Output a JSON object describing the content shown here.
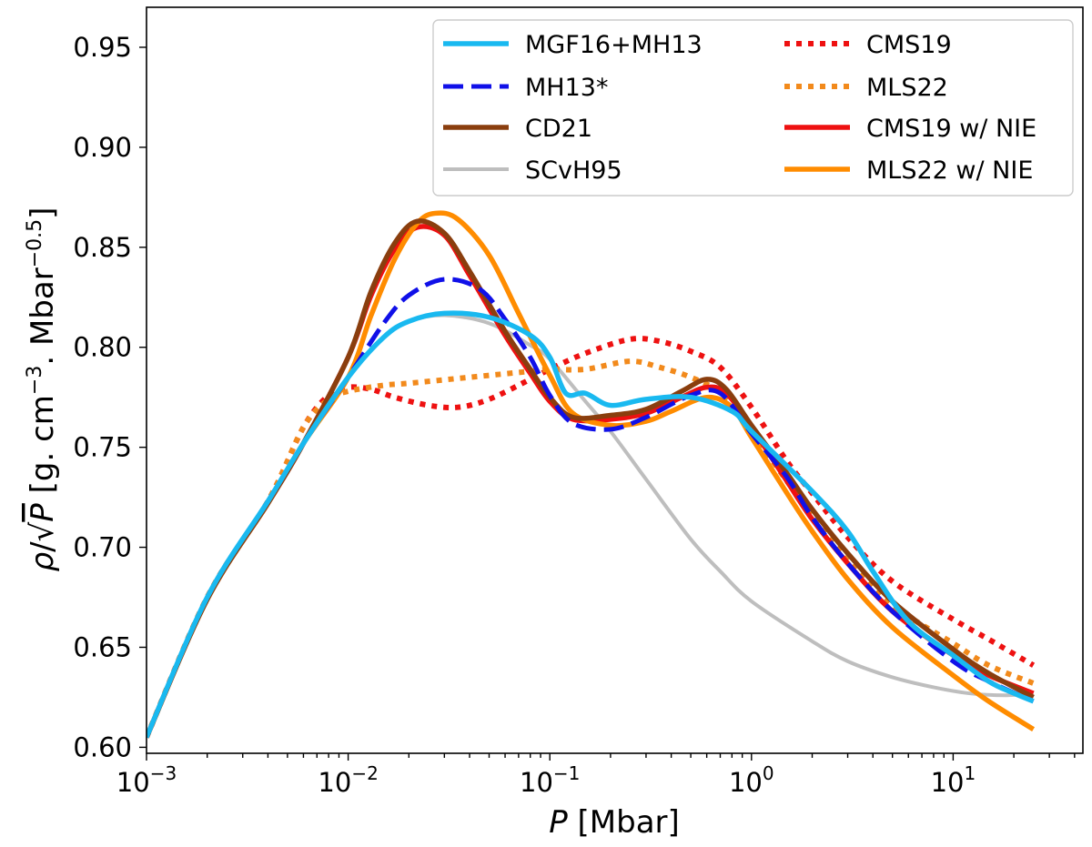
{
  "chart_data": {
    "type": "line",
    "title": "",
    "xlabel": "P [Mbar]",
    "ylabel": "ρ/√P [g. cm⁻³. Mbar⁻⁰·⁵]",
    "xscale": "log",
    "xlim": [
      0.001,
      44
    ],
    "ylim": [
      0.597,
      0.97
    ],
    "x_ticks": [
      {
        "value": 0.001,
        "base": "10",
        "exp": "−3"
      },
      {
        "value": 0.01,
        "base": "10",
        "exp": "−2"
      },
      {
        "value": 0.1,
        "base": "10",
        "exp": "−1"
      },
      {
        "value": 1,
        "base": "10",
        "exp": "0"
      },
      {
        "value": 10,
        "base": "10",
        "exp": "1"
      }
    ],
    "y_ticks": [
      {
        "value": 0.6,
        "label": "0.60"
      },
      {
        "value": 0.65,
        "label": "0.65"
      },
      {
        "value": 0.7,
        "label": "0.70"
      },
      {
        "value": 0.75,
        "label": "0.75"
      },
      {
        "value": 0.8,
        "label": "0.80"
      },
      {
        "value": 0.85,
        "label": "0.85"
      },
      {
        "value": 0.9,
        "label": "0.90"
      },
      {
        "value": 0.95,
        "label": "0.95"
      }
    ],
    "legend_position": "top-right",
    "series": [
      {
        "name": "MGF16+MH13",
        "color": "#19b9f0",
        "style": "solid",
        "width": 5.5,
        "points": [
          [
            0.001,
            0.605
          ],
          [
            0.002,
            0.675
          ],
          [
            0.004,
            0.723
          ],
          [
            0.006,
            0.752
          ],
          [
            0.01,
            0.785
          ],
          [
            0.015,
            0.805
          ],
          [
            0.02,
            0.813
          ],
          [
            0.03,
            0.817
          ],
          [
            0.05,
            0.815
          ],
          [
            0.08,
            0.806
          ],
          [
            0.1,
            0.795
          ],
          [
            0.12,
            0.777
          ],
          [
            0.15,
            0.777
          ],
          [
            0.2,
            0.771
          ],
          [
            0.3,
            0.774
          ],
          [
            0.5,
            0.775
          ],
          [
            0.8,
            0.768
          ],
          [
            1,
            0.758
          ],
          [
            2,
            0.728
          ],
          [
            3,
            0.708
          ],
          [
            4,
            0.688
          ],
          [
            6,
            0.663
          ],
          [
            10,
            0.646
          ],
          [
            15,
            0.633
          ],
          [
            20,
            0.627
          ],
          [
            25,
            0.623
          ]
        ]
      },
      {
        "name": "MH13*",
        "color": "#1010e8",
        "style": "dashed",
        "width": 5,
        "points": [
          [
            0.001,
            0.605
          ],
          [
            0.002,
            0.675
          ],
          [
            0.004,
            0.723
          ],
          [
            0.006,
            0.752
          ],
          [
            0.01,
            0.785
          ],
          [
            0.015,
            0.812
          ],
          [
            0.02,
            0.826
          ],
          [
            0.03,
            0.834
          ],
          [
            0.045,
            0.829
          ],
          [
            0.06,
            0.814
          ],
          [
            0.08,
            0.795
          ],
          [
            0.1,
            0.776
          ],
          [
            0.13,
            0.762
          ],
          [
            0.2,
            0.759
          ],
          [
            0.3,
            0.765
          ],
          [
            0.5,
            0.776
          ],
          [
            0.7,
            0.777
          ],
          [
            1,
            0.757
          ],
          [
            1.5,
            0.735
          ],
          [
            2,
            0.715
          ],
          [
            3,
            0.692
          ],
          [
            5,
            0.668
          ],
          [
            10,
            0.643
          ],
          [
            15,
            0.633
          ],
          [
            25,
            0.623
          ]
        ]
      },
      {
        "name": "CD21",
        "color": "#8a3e0e",
        "style": "solid",
        "width": 5.5,
        "points": [
          [
            0.001,
            0.605
          ],
          [
            0.002,
            0.674
          ],
          [
            0.004,
            0.722
          ],
          [
            0.006,
            0.752
          ],
          [
            0.01,
            0.795
          ],
          [
            0.013,
            0.828
          ],
          [
            0.017,
            0.852
          ],
          [
            0.022,
            0.863
          ],
          [
            0.03,
            0.857
          ],
          [
            0.04,
            0.838
          ],
          [
            0.06,
            0.808
          ],
          [
            0.08,
            0.789
          ],
          [
            0.1,
            0.775
          ],
          [
            0.13,
            0.765
          ],
          [
            0.2,
            0.766
          ],
          [
            0.3,
            0.769
          ],
          [
            0.45,
            0.778
          ],
          [
            0.6,
            0.784
          ],
          [
            0.75,
            0.779
          ],
          [
            1,
            0.761
          ],
          [
            1.5,
            0.737
          ],
          [
            2,
            0.719
          ],
          [
            3,
            0.697
          ],
          [
            5,
            0.673
          ],
          [
            10,
            0.649
          ],
          [
            15,
            0.637
          ],
          [
            25,
            0.625
          ]
        ]
      },
      {
        "name": "SCvH95",
        "color": "#bebebe",
        "style": "solid",
        "width": 4,
        "points": [
          [
            0.001,
            0.605
          ],
          [
            0.002,
            0.675
          ],
          [
            0.004,
            0.723
          ],
          [
            0.006,
            0.752
          ],
          [
            0.01,
            0.785
          ],
          [
            0.015,
            0.805
          ],
          [
            0.02,
            0.813
          ],
          [
            0.03,
            0.816
          ],
          [
            0.05,
            0.812
          ],
          [
            0.08,
            0.801
          ],
          [
            0.1,
            0.794
          ],
          [
            0.15,
            0.773
          ],
          [
            0.2,
            0.758
          ],
          [
            0.3,
            0.734
          ],
          [
            0.5,
            0.704
          ],
          [
            0.7,
            0.688
          ],
          [
            1,
            0.673
          ],
          [
            2,
            0.653
          ],
          [
            3,
            0.643
          ],
          [
            5,
            0.635
          ],
          [
            8,
            0.63
          ],
          [
            12,
            0.627
          ],
          [
            18,
            0.626
          ],
          [
            25,
            0.627
          ]
        ]
      },
      {
        "name": "CMS19",
        "color": "#ee1111",
        "style": "dotted",
        "width": 6,
        "points": [
          [
            0.001,
            0.605
          ],
          [
            0.002,
            0.675
          ],
          [
            0.004,
            0.723
          ],
          [
            0.006,
            0.76
          ],
          [
            0.008,
            0.776
          ],
          [
            0.01,
            0.78
          ],
          [
            0.013,
            0.779
          ],
          [
            0.017,
            0.775
          ],
          [
            0.025,
            0.771
          ],
          [
            0.035,
            0.77
          ],
          [
            0.05,
            0.774
          ],
          [
            0.08,
            0.784
          ],
          [
            0.1,
            0.789
          ],
          [
            0.15,
            0.797
          ],
          [
            0.25,
            0.804
          ],
          [
            0.35,
            0.803
          ],
          [
            0.5,
            0.798
          ],
          [
            0.7,
            0.79
          ],
          [
            1,
            0.77
          ],
          [
            1.5,
            0.743
          ],
          [
            2,
            0.727
          ],
          [
            3,
            0.705
          ],
          [
            5,
            0.683
          ],
          [
            10,
            0.664
          ],
          [
            15,
            0.654
          ],
          [
            25,
            0.641
          ]
        ]
      },
      {
        "name": "MLS22",
        "color": "#f28a1c",
        "style": "dotted",
        "width": 6,
        "points": [
          [
            0.001,
            0.605
          ],
          [
            0.002,
            0.675
          ],
          [
            0.004,
            0.723
          ],
          [
            0.006,
            0.76
          ],
          [
            0.008,
            0.774
          ],
          [
            0.01,
            0.778
          ],
          [
            0.015,
            0.781
          ],
          [
            0.02,
            0.782
          ],
          [
            0.04,
            0.785
          ],
          [
            0.08,
            0.788
          ],
          [
            0.1,
            0.789
          ],
          [
            0.15,
            0.789
          ],
          [
            0.25,
            0.793
          ],
          [
            0.35,
            0.79
          ],
          [
            0.5,
            0.785
          ],
          [
            0.7,
            0.777
          ],
          [
            1,
            0.758
          ],
          [
            1.5,
            0.733
          ],
          [
            2,
            0.716
          ],
          [
            3,
            0.693
          ],
          [
            5,
            0.671
          ],
          [
            10,
            0.652
          ],
          [
            15,
            0.641
          ],
          [
            25,
            0.632
          ]
        ]
      },
      {
        "name": "CMS19 w/ NIE",
        "color": "#ee1111",
        "style": "solid",
        "width": 5.5,
        "points": [
          [
            0.001,
            0.605
          ],
          [
            0.002,
            0.674
          ],
          [
            0.004,
            0.722
          ],
          [
            0.006,
            0.752
          ],
          [
            0.01,
            0.795
          ],
          [
            0.013,
            0.826
          ],
          [
            0.017,
            0.849
          ],
          [
            0.022,
            0.86
          ],
          [
            0.03,
            0.856
          ],
          [
            0.04,
            0.836
          ],
          [
            0.06,
            0.806
          ],
          [
            0.08,
            0.787
          ],
          [
            0.1,
            0.773
          ],
          [
            0.13,
            0.764
          ],
          [
            0.2,
            0.764
          ],
          [
            0.3,
            0.767
          ],
          [
            0.45,
            0.775
          ],
          [
            0.6,
            0.78
          ],
          [
            0.75,
            0.777
          ],
          [
            1,
            0.76
          ],
          [
            1.5,
            0.733
          ],
          [
            2,
            0.714
          ],
          [
            3,
            0.692
          ],
          [
            5,
            0.668
          ],
          [
            10,
            0.646
          ],
          [
            15,
            0.636
          ],
          [
            25,
            0.627
          ]
        ]
      },
      {
        "name": "MLS22 w/ NIE",
        "color": "#ff8c00",
        "style": "solid",
        "width": 5.5,
        "points": [
          [
            0.001,
            0.605
          ],
          [
            0.002,
            0.674
          ],
          [
            0.004,
            0.722
          ],
          [
            0.006,
            0.752
          ],
          [
            0.01,
            0.785
          ],
          [
            0.013,
            0.816
          ],
          [
            0.017,
            0.844
          ],
          [
            0.022,
            0.862
          ],
          [
            0.027,
            0.867
          ],
          [
            0.035,
            0.864
          ],
          [
            0.05,
            0.846
          ],
          [
            0.07,
            0.817
          ],
          [
            0.1,
            0.786
          ],
          [
            0.13,
            0.767
          ],
          [
            0.2,
            0.761
          ],
          [
            0.3,
            0.763
          ],
          [
            0.4,
            0.768
          ],
          [
            0.6,
            0.775
          ],
          [
            0.8,
            0.77
          ],
          [
            1,
            0.755
          ],
          [
            1.5,
            0.727
          ],
          [
            2,
            0.708
          ],
          [
            3,
            0.684
          ],
          [
            5,
            0.66
          ],
          [
            10,
            0.636
          ],
          [
            15,
            0.623
          ],
          [
            25,
            0.609
          ]
        ]
      }
    ]
  }
}
